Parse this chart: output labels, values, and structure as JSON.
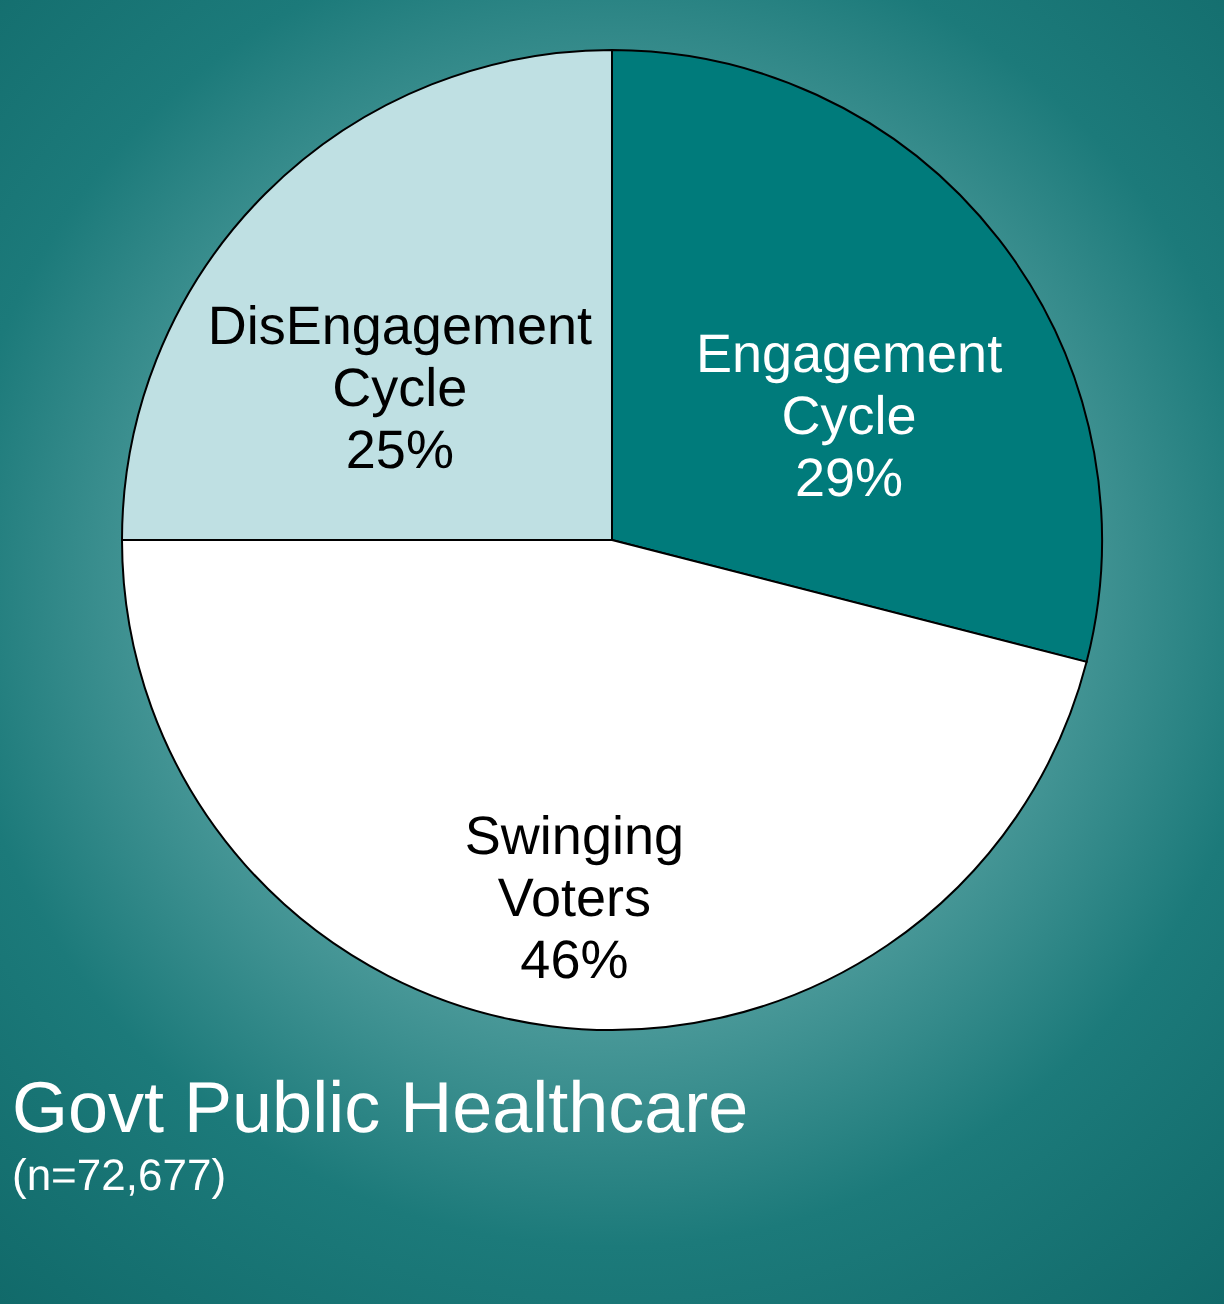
{
  "chart_data": {
    "type": "pie",
    "title": "Govt Public Healthcare",
    "subtitle": "(n=72,677)",
    "categories": [
      "Engagement Cycle",
      "Swinging Voters",
      "DisEngagement Cycle"
    ],
    "values": [
      29,
      46,
      25
    ],
    "colors": [
      "#007b7b",
      "#ffffff",
      "#bfe0e3"
    ],
    "value_labels": [
      "29%",
      "46%",
      "25%"
    ]
  }
}
